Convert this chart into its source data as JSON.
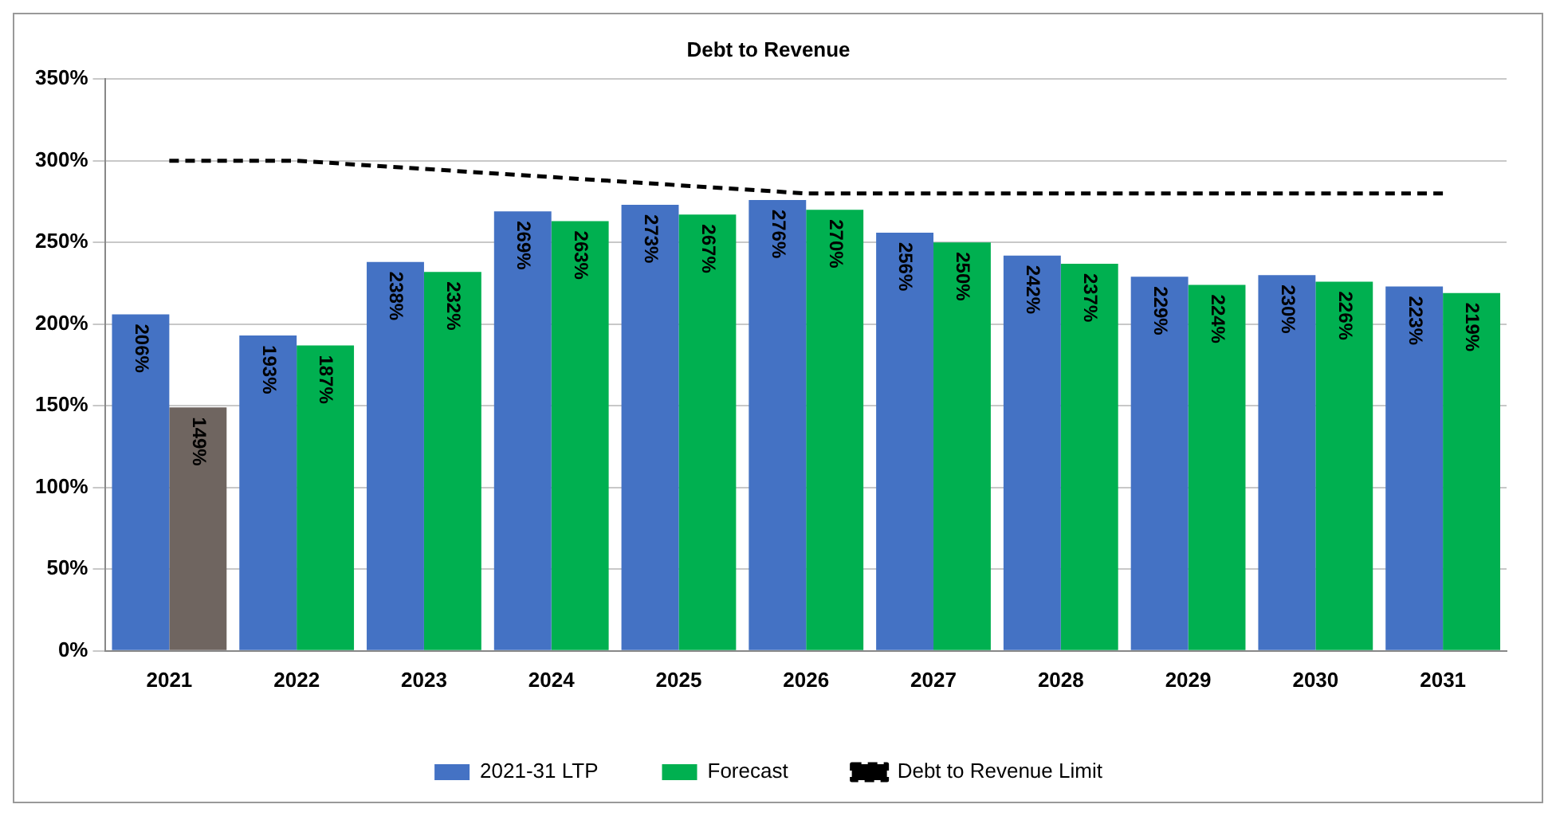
{
  "chart_data": {
    "type": "bar",
    "title": "Debt to Revenue",
    "categories": [
      "2021",
      "2022",
      "2023",
      "2024",
      "2025",
      "2026",
      "2027",
      "2028",
      "2029",
      "2030",
      "2031"
    ],
    "series": [
      {
        "name": "2021-31 LTP",
        "color": "#4472c4",
        "values": [
          206,
          193,
          238,
          269,
          273,
          276,
          256,
          242,
          229,
          230,
          223
        ],
        "value_labels": [
          "206%",
          "193%",
          "238%",
          "269%",
          "273%",
          "276%",
          "256%",
          "242%",
          "229%",
          "230%",
          "223%"
        ]
      },
      {
        "name": "Forecast",
        "color": "#00b050",
        "colors": [
          "#6f6560",
          "#00b050",
          "#00b050",
          "#00b050",
          "#00b050",
          "#00b050",
          "#00b050",
          "#00b050",
          "#00b050",
          "#00b050",
          "#00b050"
        ],
        "values": [
          149,
          187,
          232,
          263,
          267,
          270,
          250,
          237,
          224,
          226,
          219
        ],
        "value_labels": [
          "149%",
          "187%",
          "232%",
          "263%",
          "267%",
          "270%",
          "250%",
          "237%",
          "224%",
          "226%",
          "219%"
        ]
      },
      {
        "name": "Debt to Revenue Limit",
        "type": "line",
        "color": "#000000",
        "line_style": "dashed",
        "marker": "none",
        "values": [
          300,
          300,
          295,
          290,
          285,
          280,
          280,
          280,
          280,
          280,
          280
        ]
      }
    ],
    "ylim": [
      0,
      350
    ],
    "yticks": [
      {
        "value": 0,
        "label": "0%"
      },
      {
        "value": 50,
        "label": "50%"
      },
      {
        "value": 100,
        "label": "100%"
      },
      {
        "value": 150,
        "label": "150%"
      },
      {
        "value": 200,
        "label": "200%"
      },
      {
        "value": 250,
        "label": "250%"
      },
      {
        "value": 300,
        "label": "300%"
      },
      {
        "value": 350,
        "label": "350%"
      }
    ],
    "grid": "y",
    "legend": "bottom"
  }
}
